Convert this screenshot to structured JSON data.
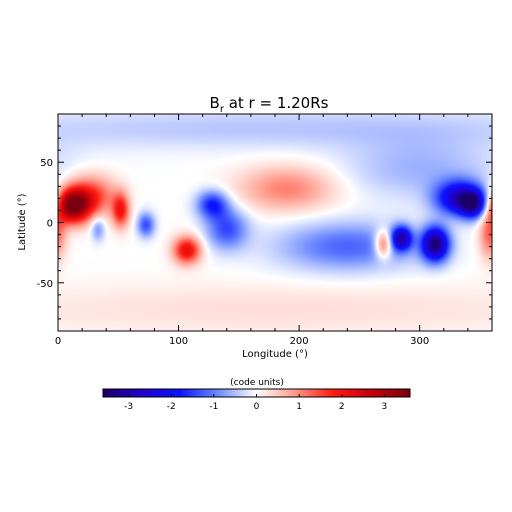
{
  "chart_data": {
    "type": "heatmap",
    "title": "B",
    "title_sub": "r",
    "title_tail": " at r = 1.20Rs",
    "xlabel": "Longitude (°)",
    "ylabel": "Latitude (°)",
    "xlim": [
      0,
      360
    ],
    "ylim": [
      -90,
      90
    ],
    "x_ticks": [
      0,
      100,
      200,
      300
    ],
    "y_ticks": [
      -50,
      0,
      50
    ],
    "grid": false,
    "colorbar": {
      "label": "(code units)",
      "range": [
        -3.6,
        3.6
      ],
      "ticks": [
        -3,
        -2,
        -1,
        0,
        1,
        2,
        3
      ],
      "colors": [
        "#1a0066",
        "#2200cc",
        "#0a14ff",
        "#6e8cff",
        "#ffffff",
        "#ff9a8a",
        "#ff1a10",
        "#c4000c",
        "#7a0010"
      ]
    },
    "features": [
      {
        "lon": 12,
        "lat": 14,
        "value": 3.5,
        "sigma_lon": 10,
        "sigma_lat": 10
      },
      {
        "lon": 28,
        "lat": 22,
        "value": 1.6,
        "sigma_lon": 14,
        "sigma_lat": 12
      },
      {
        "lon": 52,
        "lat": 10,
        "value": 1.9,
        "sigma_lon": 5,
        "sigma_lat": 10
      },
      {
        "lon": 33,
        "lat": -5,
        "value": -0.9,
        "sigma_lon": 4,
        "sigma_lat": 7
      },
      {
        "lon": 73,
        "lat": -2,
        "value": -1.4,
        "sigma_lon": 5,
        "sigma_lat": 7
      },
      {
        "lon": 107,
        "lat": -23,
        "value": 2.2,
        "sigma_lon": 8,
        "sigma_lat": 8
      },
      {
        "lon": 128,
        "lat": 15,
        "value": -1.7,
        "sigma_lon": 9,
        "sigma_lat": 8
      },
      {
        "lon": 140,
        "lat": -5,
        "value": -1.4,
        "sigma_lon": 12,
        "sigma_lat": 12
      },
      {
        "lon": 190,
        "lat": 28,
        "value": 1.1,
        "sigma_lon": 28,
        "sigma_lat": 13
      },
      {
        "lon": 240,
        "lat": -20,
        "value": -1.2,
        "sigma_lon": 40,
        "sigma_lat": 14
      },
      {
        "lon": 270,
        "lat": -18,
        "value": 1.8,
        "sigma_lon": 5,
        "sigma_lat": 8
      },
      {
        "lon": 285,
        "lat": -13,
        "value": -2.6,
        "sigma_lon": 6,
        "sigma_lat": 7
      },
      {
        "lon": 313,
        "lat": -18,
        "value": -3.3,
        "sigma_lon": 8,
        "sigma_lat": 10
      },
      {
        "lon": 333,
        "lat": 20,
        "value": -2.6,
        "sigma_lon": 14,
        "sigma_lat": 10
      },
      {
        "lon": 345,
        "lat": 15,
        "value": -2.3,
        "sigma_lon": 8,
        "sigma_lat": 8
      },
      {
        "lon": 300,
        "lat": 45,
        "value": -0.6,
        "sigma_lon": 45,
        "sigma_lat": 18
      },
      {
        "lon": 180,
        "lat": 78,
        "value": -0.45,
        "sigma_lon": 200,
        "sigma_lat": 12
      },
      {
        "lon": 180,
        "lat": -72,
        "value": 0.3,
        "sigma_lon": 200,
        "sigma_lat": 15
      },
      {
        "lon": 358,
        "lat": -10,
        "value": 1.3,
        "sigma_lon": 6,
        "sigma_lat": 14
      }
    ]
  }
}
